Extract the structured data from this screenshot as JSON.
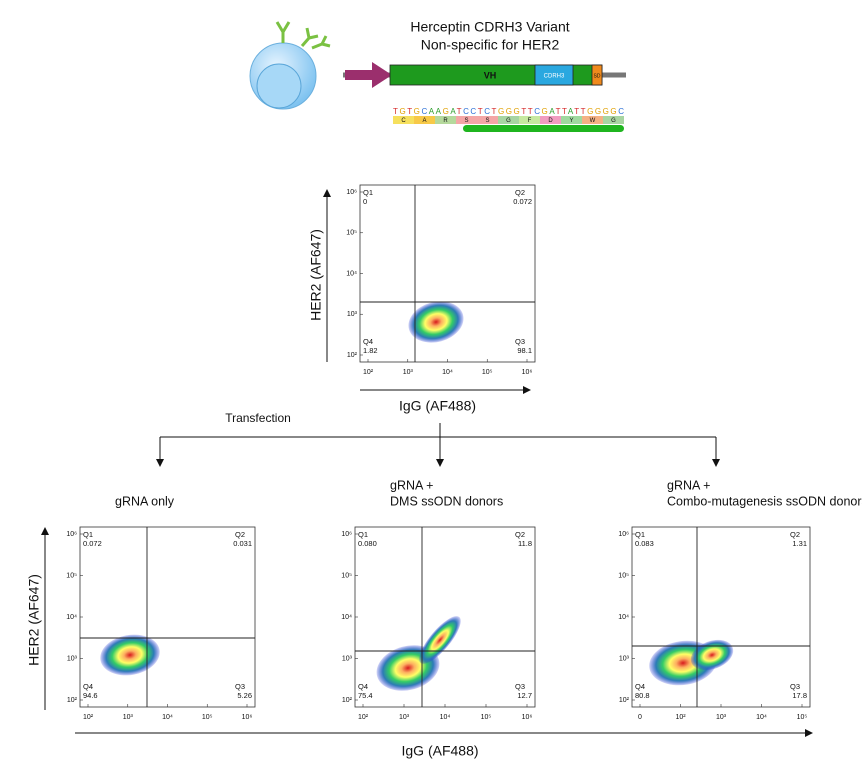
{
  "header": {
    "title_line1": "Herceptin CDRH3 Variant",
    "title_line2": "Non-specific for HER2"
  },
  "construct": {
    "vh": "VH",
    "cdrh3": "CDRH3",
    "sd": "SD",
    "sequence": "TGTGCAAGATCCTCTGGGTTCGATTATTGGGGC",
    "amino_acids": [
      "C",
      "A",
      "R",
      "S",
      "S",
      "G",
      "F",
      "D",
      "Y",
      "W",
      "G"
    ]
  },
  "transfection": "Transfection",
  "y_label": "HER2 (AF647)",
  "x_label": "IgG (AF488)",
  "plots": [
    {
      "y_label": "HER2 (AF647)",
      "x_label": "IgG (AF488)",
      "xticks": [
        "10²",
        "10³",
        "10⁴",
        "10⁵",
        "10⁶"
      ],
      "yticks": [
        "10²",
        "10³",
        "10⁴",
        "10⁵",
        "10⁶"
      ],
      "q1": "Q1",
      "q1_value": "0",
      "q2": "Q2",
      "q2_value": "0.072",
      "q3": "Q3",
      "q3_value": "98.1",
      "q4": "Q4",
      "q4_value": "1.82"
    },
    {
      "title": [
        "gRNA only"
      ],
      "xticks": [
        "10²",
        "10³",
        "10⁴",
        "10⁵",
        "10⁶"
      ],
      "yticks": [
        "10²",
        "10³",
        "10⁴",
        "10⁵",
        "10⁶"
      ],
      "q1": "Q1",
      "q1_value": "0.072",
      "q2": "Q2",
      "q2_value": "0.031",
      "q3": "Q3",
      "q3_value": "5.26",
      "q4": "Q4",
      "q4_value": "94.6"
    },
    {
      "title": [
        "gRNA +",
        "DMS ssODN donors"
      ],
      "xticks": [
        "10²",
        "10³",
        "10⁴",
        "10⁵",
        "10⁶"
      ],
      "yticks": [
        "10²",
        "10³",
        "10⁴",
        "10⁵",
        "10⁶"
      ],
      "q1": "Q1",
      "q1_value": "0.080",
      "q2": "Q2",
      "q2_value": "11.8",
      "q3": "Q3",
      "q3_value": "12.7",
      "q4": "Q4",
      "q4_value": "75.4"
    },
    {
      "title": [
        "gRNA +",
        "Combo-mutagenesis ssODN donors"
      ],
      "xticks": [
        "0",
        "10²",
        "10³",
        "10⁴",
        "10⁵"
      ],
      "yticks": [
        "10²",
        "10³",
        "10⁴",
        "10⁵",
        "10⁶"
      ],
      "q1": "Q1",
      "q1_value": "0.083",
      "q2": "Q2",
      "q2_value": "1.31",
      "q3": "Q3",
      "q3_value": "17.8",
      "q4": "Q4",
      "q4_value": "80.8"
    }
  ]
}
